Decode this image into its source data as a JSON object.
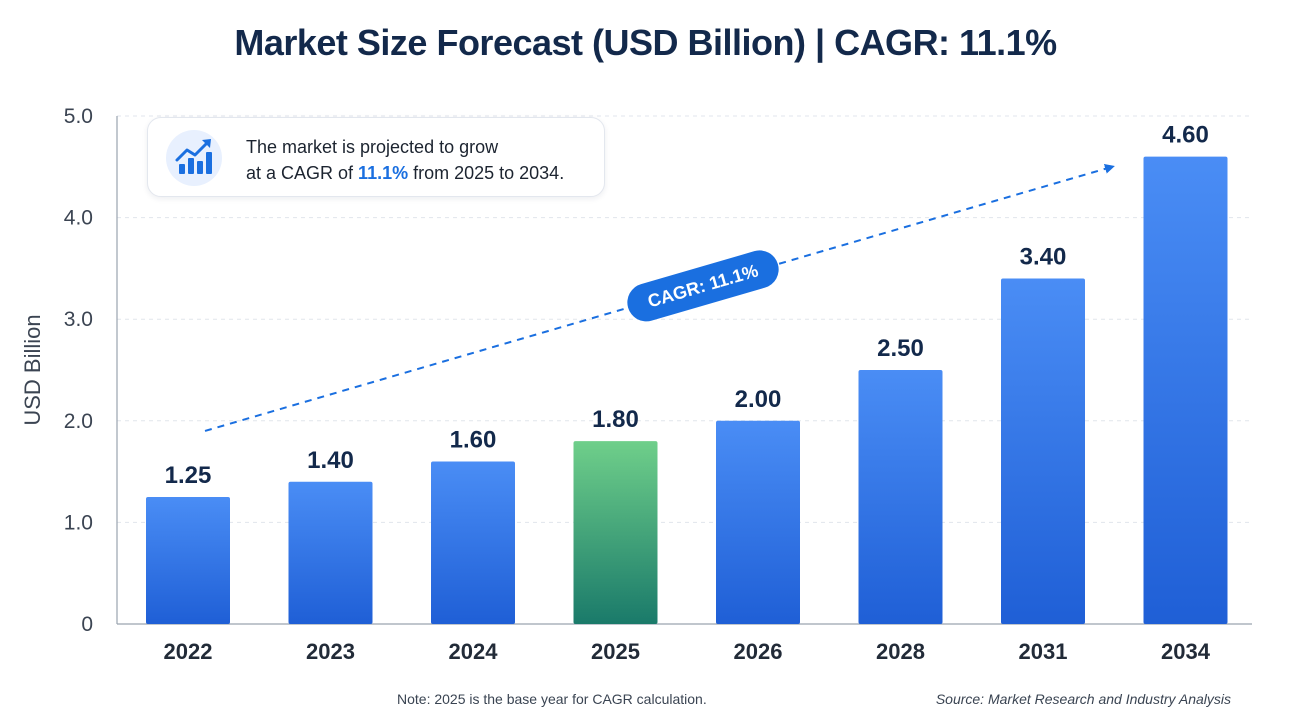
{
  "chart_data": {
    "type": "bar",
    "title": "Market Size Forecast (USD Billion) | CAGR: 11.1%",
    "ylabel": "USD Billion",
    "xlabel": "",
    "ylim": [
      0,
      5
    ],
    "yticks": [
      "0",
      "1.0",
      "2.0",
      "3.0",
      "4.0",
      "5.0"
    ],
    "ytick_values": [
      0,
      1,
      2,
      3,
      4,
      5
    ],
    "grid": true,
    "categories": [
      "2022",
      "2023",
      "2024",
      "2025",
      "2026",
      "2028",
      "2031",
      "2034"
    ],
    "values": [
      1.25,
      1.4,
      1.6,
      1.8,
      2.0,
      2.5,
      3.4,
      4.6
    ],
    "value_labels": [
      "1.25",
      "1.40",
      "1.60",
      "1.80",
      "2.00",
      "2.50",
      "3.40",
      "4.60"
    ],
    "highlight_category": "2025",
    "trend_line": {
      "from_value": 1.9,
      "to_value": 4.5,
      "label": "CAGR: 11.1%"
    }
  },
  "callout": {
    "line1": "The market is projected to grow",
    "line2_prefix": "at a CAGR of ",
    "line2_highlight": "11.1%",
    "line2_suffix": " from 2025 to 2034."
  },
  "footer": {
    "note": "Note: 2025 is the base year for CAGR calculation.",
    "source": "Source: Market Research and Industry Analysis"
  },
  "colors": {
    "bar_top": "#4a8df5",
    "bar_bottom": "#1f5fd6",
    "highlight_top": "#6fcf8a",
    "highlight_bottom": "#1a7a6a",
    "accent": "#1a6fe0",
    "title": "#13294b"
  },
  "icons": {
    "callout": "trending-up-bar-chart-icon"
  }
}
